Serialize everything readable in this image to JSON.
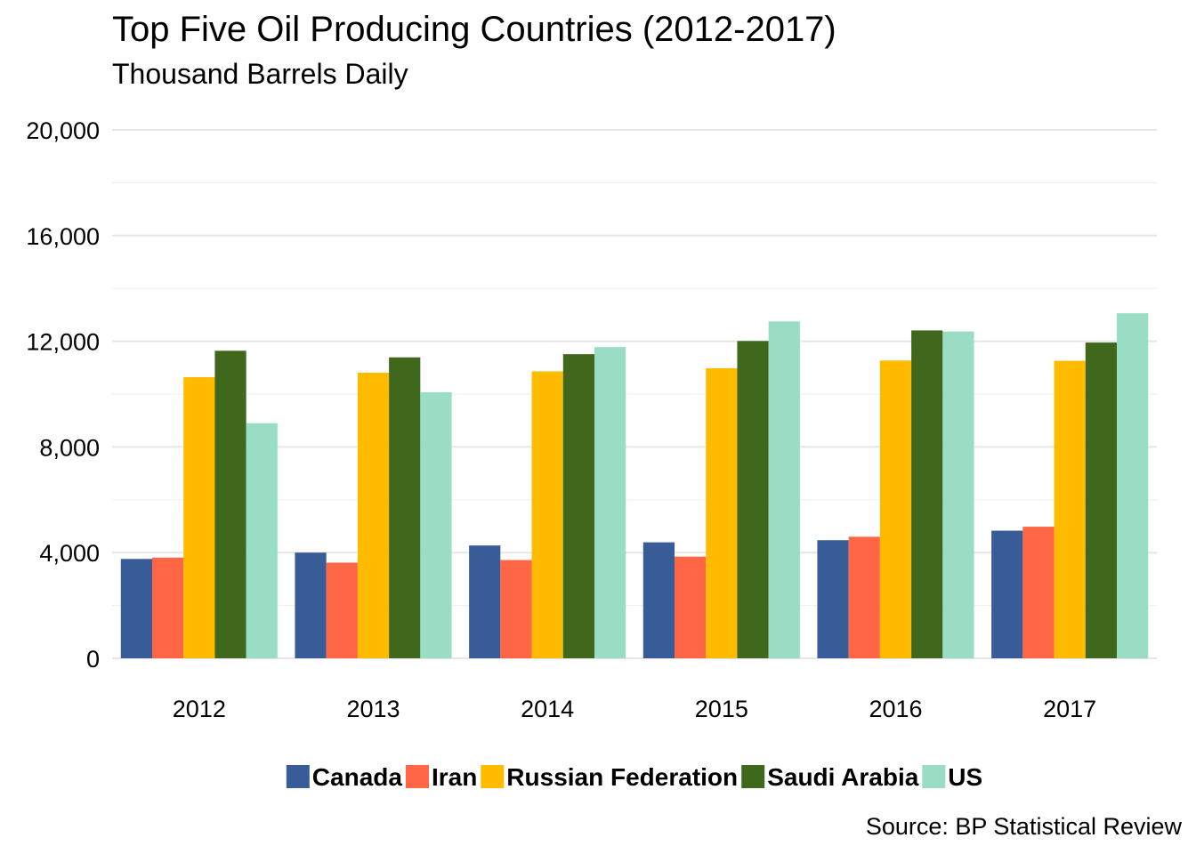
{
  "chart_data": {
    "type": "bar",
    "title": "Top Five Oil Producing Countries (2012-2017)",
    "subtitle": "Thousand Barrels Daily",
    "xlabel": "",
    "ylabel": "",
    "categories": [
      "2012",
      "2013",
      "2014",
      "2015",
      "2016",
      "2017"
    ],
    "ylim": [
      0,
      20000
    ],
    "yticks": [
      0,
      4000,
      8000,
      12000,
      16000,
      20000
    ],
    "ytick_labels": [
      "0",
      "4,000",
      "8,000",
      "12,000",
      "16,000",
      "20,000"
    ],
    "grid": true,
    "legend_position": "bottom",
    "series": [
      {
        "name": "Canada",
        "color": "#375C98",
        "values": [
          3760,
          4000,
          4270,
          4390,
          4470,
          4830
        ]
      },
      {
        "name": "Iran",
        "color": "#FF6645",
        "values": [
          3810,
          3620,
          3720,
          3850,
          4600,
          4980
        ]
      },
      {
        "name": "Russian Federation",
        "color": "#FFBB00",
        "values": [
          10640,
          10810,
          10860,
          10980,
          11270,
          11260
        ]
      },
      {
        "name": "Saudi Arabia",
        "color": "#3F681C",
        "values": [
          11640,
          11390,
          11510,
          12010,
          12410,
          11950
        ]
      },
      {
        "name": "US",
        "color": "#9ADDC5",
        "values": [
          8900,
          10070,
          11780,
          12750,
          12370,
          13060
        ]
      }
    ],
    "source": "Source: BP Statistical Review"
  }
}
